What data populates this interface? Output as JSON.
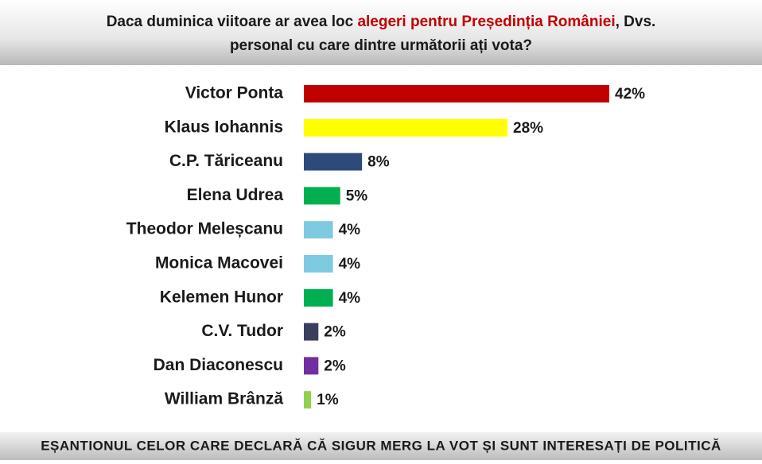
{
  "chart_data": {
    "type": "bar",
    "orientation": "horizontal",
    "title_lines": [
      [
        {
          "text": "Daca duminica viitoare ar avea loc ",
          "color": "#1a1a1a"
        },
        {
          "text": "alegeri pentru Președinția României",
          "color": "#c00000"
        },
        {
          "text": ", Dvs.",
          "color": "#1a1a1a"
        }
      ],
      [
        {
          "text": "personal cu care dintre următorii ați vota?",
          "color": "#1a1a1a"
        }
      ]
    ],
    "categories": [
      "Victor Ponta",
      "Klaus Iohannis",
      "C.P. Tăriceanu",
      "Elena Udrea",
      "Theodor Meleșcanu",
      "Monica Macovei",
      "Kelemen Hunor",
      "C.V. Tudor",
      "Dan Diaconescu",
      "William Brânză"
    ],
    "values": [
      42,
      28,
      8,
      5,
      4,
      4,
      4,
      2,
      2,
      1
    ],
    "value_labels": [
      "42%",
      "28%",
      "8%",
      "5%",
      "4%",
      "4%",
      "4%",
      "2%",
      "2%",
      "1%"
    ],
    "colors": [
      "#c00000",
      "#ffff00",
      "#2e4a7a",
      "#00b050",
      "#7ecbe0",
      "#7ecbe0",
      "#00b050",
      "#3a3f5c",
      "#7030a0",
      "#92d050"
    ],
    "footer": "EȘANTIONUL CELOR CARE DECLARĂ CĂ SIGUR MERG LA VOT ȘI SUNT INTERESAȚI DE POLITICĂ"
  }
}
